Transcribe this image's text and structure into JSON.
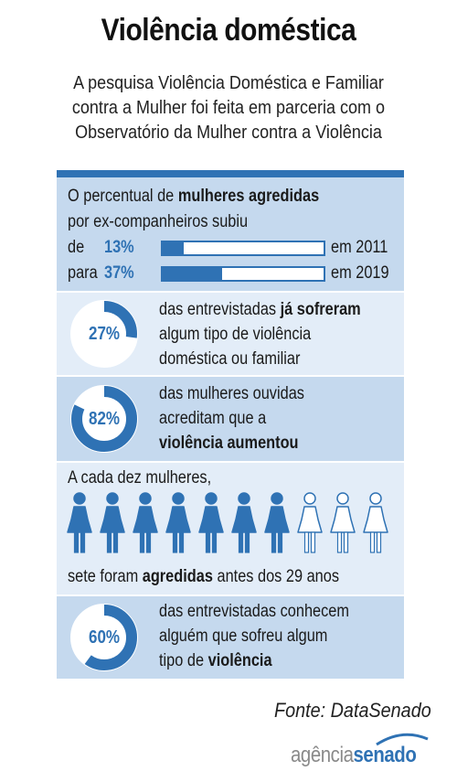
{
  "title": "Violência doméstica",
  "subtitle": [
    "A pesquisa Violência Doméstica e Familiar",
    "contra a Mulher foi feita em parceria com o",
    "Observatório da Mulher contra a Violência"
  ],
  "panel1": {
    "line1_pre": "O percentual de ",
    "line1_bold": "mulheres agredidas",
    "line2": "por ex-companheiros subiu",
    "row1": {
      "prefix": "de",
      "pct_label": "13%",
      "value": 13,
      "year_text": "em 2011"
    },
    "row2": {
      "prefix": "para",
      "pct_label": "37%",
      "value": 37,
      "year_text": "em 2019"
    }
  },
  "panel2": {
    "pct_label": "27%",
    "value": 27,
    "line1_pre": "das entrevistadas ",
    "line1_bold": "já sofreram",
    "line2": "algum tipo de violência",
    "line3": "doméstica ou familiar"
  },
  "panel3": {
    "pct_label": "82%",
    "value": 82,
    "line1": "das mulheres ouvidas",
    "line2": "acreditam que a",
    "line3_bold": "violência aumentou"
  },
  "panel4": {
    "line1": "A cada dez mulheres,",
    "filled_count": 7,
    "total_count": 10,
    "line2_pre": "sete foram ",
    "line2_bold": "agredidas",
    "line2_post": " antes dos 29 anos"
  },
  "panel5": {
    "pct_label": "60%",
    "value": 60,
    "line1": "das entrevistadas conhecem",
    "line2": "alguém que sofreu algum",
    "line3_pre": "tipo de ",
    "line3_bold": "violência"
  },
  "source": "Fonte: DataSenado",
  "logo": {
    "part1": "agência",
    "part2": "senado"
  },
  "colors": {
    "accent": "#2f72b4",
    "panel_dark": "#c5d9ee",
    "panel_light": "#e3edf8"
  },
  "icons": {
    "person_filled": "woman-silhouette-filled",
    "person_outline": "woman-silhouette-outline"
  }
}
